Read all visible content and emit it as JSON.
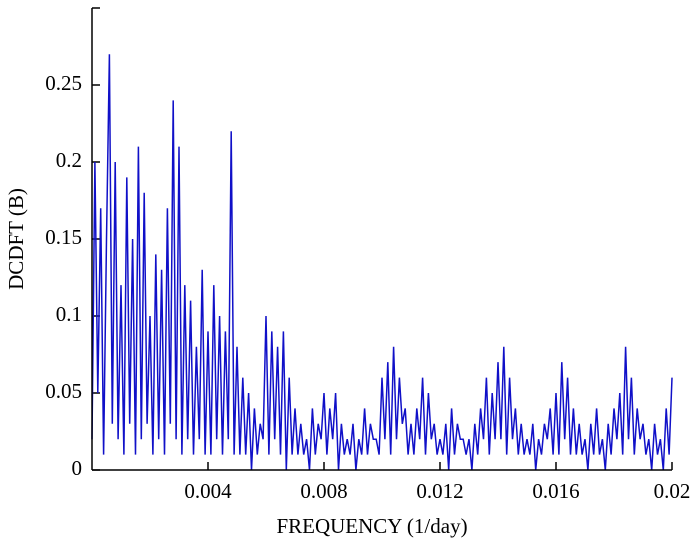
{
  "chart_data": {
    "type": "line",
    "x_label": "FREQUENCY (1/day)",
    "y_label": "DCDFT (B)",
    "color": "#1010c8",
    "xlim": [
      0,
      0.02
    ],
    "ylim": [
      0,
      0.3
    ],
    "xticks": [
      0.004,
      0.008,
      0.012,
      0.016,
      0.02
    ],
    "yticks": [
      0,
      0.05,
      0.1,
      0.15,
      0.2,
      0.25
    ],
    "x": [
      0,
      0.0001,
      0.0002,
      0.0003,
      0.0004,
      0.0005,
      0.0006,
      0.0007,
      0.0008,
      0.0009,
      0.001,
      0.0011,
      0.0012,
      0.0013,
      0.0014,
      0.0015,
      0.0016,
      0.0017,
      0.0018,
      0.0019,
      0.002,
      0.0021,
      0.0022,
      0.0023,
      0.0024,
      0.0025,
      0.0026,
      0.0027,
      0.0028,
      0.0029,
      0.003,
      0.0031,
      0.0032,
      0.0033,
      0.0034,
      0.0035,
      0.0036,
      0.0037,
      0.0038,
      0.0039,
      0.004,
      0.0041,
      0.0042,
      0.0043,
      0.0044,
      0.0045,
      0.0046,
      0.0047,
      0.0048,
      0.0049,
      0.005,
      0.0051,
      0.0052,
      0.0053,
      0.0054,
      0.0055,
      0.0056,
      0.0057,
      0.0058,
      0.0059,
      0.006,
      0.0061,
      0.0062,
      0.0063,
      0.0064,
      0.0065,
      0.0066,
      0.0067,
      0.0068,
      0.0069,
      0.007,
      0.0071,
      0.0072,
      0.0073,
      0.0074,
      0.0075,
      0.0076,
      0.0077,
      0.0078,
      0.0079,
      0.008,
      0.0081,
      0.0082,
      0.0083,
      0.0084,
      0.0085,
      0.0086,
      0.0087,
      0.0088,
      0.0089,
      0.009,
      0.0091,
      0.0092,
      0.0093,
      0.0094,
      0.0095,
      0.0096,
      0.0097,
      0.0098,
      0.0099,
      0.01,
      0.0101,
      0.0102,
      0.0103,
      0.0104,
      0.0105,
      0.0106,
      0.0107,
      0.0108,
      0.0109,
      0.011,
      0.0111,
      0.0112,
      0.0113,
      0.0114,
      0.0115,
      0.0116,
      0.0117,
      0.0118,
      0.0119,
      0.012,
      0.0121,
      0.0122,
      0.0123,
      0.0124,
      0.0125,
      0.0126,
      0.0127,
      0.0128,
      0.0129,
      0.013,
      0.0131,
      0.0132,
      0.0133,
      0.0134,
      0.0135,
      0.0136,
      0.0137,
      0.0138,
      0.0139,
      0.014,
      0.0141,
      0.0142,
      0.0143,
      0.0144,
      0.0145,
      0.0146,
      0.0147,
      0.0148,
      0.0149,
      0.015,
      0.0151,
      0.0152,
      0.0153,
      0.0154,
      0.0155,
      0.0156,
      0.0157,
      0.0158,
      0.0159,
      0.016,
      0.0161,
      0.0162,
      0.0163,
      0.0164,
      0.0165,
      0.0166,
      0.0167,
      0.0168,
      0.0169,
      0.017,
      0.0171,
      0.0172,
      0.0173,
      0.0174,
      0.0175,
      0.0176,
      0.0177,
      0.0178,
      0.0179,
      0.018,
      0.0181,
      0.0182,
      0.0183,
      0.0184,
      0.0185,
      0.0186,
      0.0187,
      0.0188,
      0.0189,
      0.019,
      0.0191,
      0.0192,
      0.0193,
      0.0194,
      0.0195,
      0.0196,
      0.0197,
      0.0198,
      0.0199,
      0.02
    ],
    "values": [
      0.02,
      0.2,
      0.05,
      0.17,
      0.01,
      0.15,
      0.27,
      0.03,
      0.2,
      0.02,
      0.12,
      0.01,
      0.19,
      0.03,
      0.15,
      0.01,
      0.21,
      0.02,
      0.18,
      0.03,
      0.1,
      0.01,
      0.14,
      0.02,
      0.13,
      0.01,
      0.17,
      0.03,
      0.24,
      0.02,
      0.21,
      0.01,
      0.12,
      0.02,
      0.11,
      0.01,
      0.08,
      0.02,
      0.13,
      0.01,
      0.09,
      0.01,
      0.12,
      0.02,
      0.1,
      0.01,
      0.09,
      0.02,
      0.22,
      0.01,
      0.08,
      0.01,
      0.06,
      0.01,
      0.05,
      0,
      0.04,
      0.01,
      0.03,
      0.02,
      0.1,
      0.01,
      0.09,
      0.02,
      0.08,
      0.01,
      0.09,
      0,
      0.06,
      0.01,
      0.04,
      0.01,
      0.03,
      0.01,
      0.02,
      0,
      0.04,
      0.01,
      0.03,
      0.02,
      0.05,
      0.01,
      0.04,
      0.02,
      0.05,
      0,
      0.03,
      0.01,
      0.02,
      0.01,
      0.03,
      0,
      0.02,
      0.01,
      0.04,
      0.01,
      0.03,
      0.02,
      0.02,
      0.01,
      0.06,
      0.02,
      0.07,
      0.01,
      0.08,
      0.02,
      0.06,
      0.03,
      0.04,
      0.01,
      0.03,
      0.01,
      0.04,
      0.02,
      0.06,
      0.01,
      0.05,
      0.02,
      0.03,
      0.01,
      0.02,
      0.01,
      0.03,
      0,
      0.04,
      0.01,
      0.03,
      0.02,
      0.02,
      0.01,
      0.02,
      0,
      0.03,
      0.01,
      0.04,
      0.02,
      0.06,
      0.01,
      0.05,
      0.02,
      0.07,
      0.02,
      0.08,
      0.01,
      0.06,
      0.02,
      0.04,
      0.01,
      0.03,
      0.01,
      0.02,
      0.01,
      0.03,
      0,
      0.02,
      0.01,
      0.03,
      0.02,
      0.04,
      0.01,
      0.05,
      0.01,
      0.07,
      0.02,
      0.06,
      0.01,
      0.04,
      0.01,
      0.03,
      0.01,
      0.02,
      0,
      0.03,
      0.01,
      0.04,
      0.01,
      0.02,
      0,
      0.03,
      0.01,
      0.04,
      0.02,
      0.05,
      0.01,
      0.08,
      0.02,
      0.06,
      0.01,
      0.04,
      0.02,
      0.03,
      0.01,
      0.02,
      0,
      0.03,
      0.01,
      0.02,
      0,
      0.04,
      0.01,
      0.06
    ]
  }
}
